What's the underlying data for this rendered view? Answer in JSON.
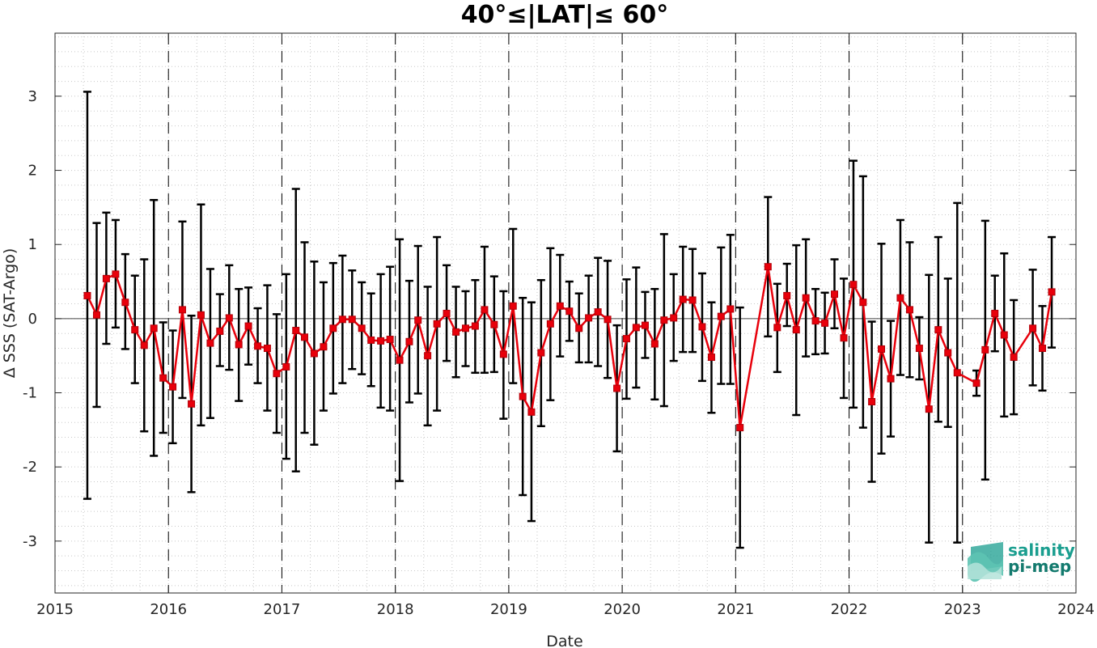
{
  "chart_data": {
    "type": "line",
    "title": "40°≤|LAT|≤ 60°",
    "xlabel": "Date",
    "ylabel": "Δ SSS (SAT-Argo)",
    "xlim": [
      "2015-01-01",
      "2024-01-01"
    ],
    "ylim": [
      -3.7,
      3.85
    ],
    "x_ticks": [
      "2015",
      "2016",
      "2017",
      "2018",
      "2019",
      "2020",
      "2021",
      "2022",
      "2023",
      "2024"
    ],
    "y_ticks": [
      -3,
      -2,
      -1,
      0,
      1,
      2,
      3
    ],
    "grid": "minor-dotted",
    "year_boundaries": [
      "2016",
      "2017",
      "2018",
      "2019",
      "2020",
      "2021",
      "2022",
      "2023"
    ],
    "series": [
      {
        "color": "#e8000b",
        "marker": "square",
        "errorbar_color": "#000000",
        "points": [
          {
            "x": "2015-04-15",
            "y": 0.31,
            "lo": -2.43,
            "hi": 3.06
          },
          {
            "x": "2015-05-15",
            "y": 0.05,
            "lo": -1.19,
            "hi": 1.29
          },
          {
            "x": "2015-06-15",
            "y": 0.54,
            "lo": -0.34,
            "hi": 1.43
          },
          {
            "x": "2015-07-15",
            "y": 0.6,
            "lo": -0.12,
            "hi": 1.33
          },
          {
            "x": "2015-08-15",
            "y": 0.22,
            "lo": -0.41,
            "hi": 0.87
          },
          {
            "x": "2015-09-15",
            "y": -0.15,
            "lo": -0.87,
            "hi": 0.58
          },
          {
            "x": "2015-10-15",
            "y": -0.36,
            "lo": -1.52,
            "hi": 0.8
          },
          {
            "x": "2015-11-15",
            "y": -0.13,
            "lo": -1.85,
            "hi": 1.6
          },
          {
            "x": "2015-12-15",
            "y": -0.8,
            "lo": -1.54,
            "hi": -0.05
          },
          {
            "x": "2016-01-15",
            "y": -0.92,
            "lo": -1.68,
            "hi": -0.16
          },
          {
            "x": "2016-02-15",
            "y": 0.12,
            "lo": -1.07,
            "hi": 1.31
          },
          {
            "x": "2016-03-15",
            "y": -1.15,
            "lo": -2.34,
            "hi": 0.04
          },
          {
            "x": "2016-04-15",
            "y": 0.05,
            "lo": -1.44,
            "hi": 1.54
          },
          {
            "x": "2016-05-15",
            "y": -0.33,
            "lo": -1.34,
            "hi": 0.67
          },
          {
            "x": "2016-06-15",
            "y": -0.17,
            "lo": -0.64,
            "hi": 0.33
          },
          {
            "x": "2016-07-15",
            "y": 0.01,
            "lo": -0.69,
            "hi": 0.72
          },
          {
            "x": "2016-08-15",
            "y": -0.35,
            "lo": -1.11,
            "hi": 0.4
          },
          {
            "x": "2016-09-15",
            "y": -0.1,
            "lo": -0.62,
            "hi": 0.42
          },
          {
            "x": "2016-10-15",
            "y": -0.37,
            "lo": -0.87,
            "hi": 0.14
          },
          {
            "x": "2016-11-15",
            "y": -0.4,
            "lo": -1.24,
            "hi": 0.45
          },
          {
            "x": "2016-12-15",
            "y": -0.74,
            "lo": -1.54,
            "hi": 0.06
          },
          {
            "x": "2017-01-15",
            "y": -0.65,
            "lo": -1.89,
            "hi": 0.6
          },
          {
            "x": "2017-02-15",
            "y": -0.16,
            "lo": -2.06,
            "hi": 1.75
          },
          {
            "x": "2017-03-15",
            "y": -0.25,
            "lo": -1.54,
            "hi": 1.03
          },
          {
            "x": "2017-04-15",
            "y": -0.47,
            "lo": -1.7,
            "hi": 0.77
          },
          {
            "x": "2017-05-15",
            "y": -0.38,
            "lo": -1.24,
            "hi": 0.49
          },
          {
            "x": "2017-06-15",
            "y": -0.13,
            "lo": -1.01,
            "hi": 0.75
          },
          {
            "x": "2017-07-15",
            "y": -0.01,
            "lo": -0.87,
            "hi": 0.85
          },
          {
            "x": "2017-08-15",
            "y": -0.01,
            "lo": -0.68,
            "hi": 0.65
          },
          {
            "x": "2017-09-15",
            "y": -0.13,
            "lo": -0.75,
            "hi": 0.49
          },
          {
            "x": "2017-10-15",
            "y": -0.29,
            "lo": -0.91,
            "hi": 0.34
          },
          {
            "x": "2017-11-15",
            "y": -0.3,
            "lo": -1.2,
            "hi": 0.6
          },
          {
            "x": "2017-12-15",
            "y": -0.28,
            "lo": -1.24,
            "hi": 0.7
          },
          {
            "x": "2018-01-15",
            "y": -0.56,
            "lo": -2.19,
            "hi": 1.07
          },
          {
            "x": "2018-02-15",
            "y": -0.31,
            "lo": -1.13,
            "hi": 0.51
          },
          {
            "x": "2018-03-15",
            "y": -0.02,
            "lo": -1.01,
            "hi": 0.98
          },
          {
            "x": "2018-04-15",
            "y": -0.5,
            "lo": -1.44,
            "hi": 0.43
          },
          {
            "x": "2018-05-15",
            "y": -0.07,
            "lo": -1.24,
            "hi": 1.1
          },
          {
            "x": "2018-06-15",
            "y": 0.07,
            "lo": -0.57,
            "hi": 0.72
          },
          {
            "x": "2018-07-15",
            "y": -0.18,
            "lo": -0.79,
            "hi": 0.43
          },
          {
            "x": "2018-08-15",
            "y": -0.13,
            "lo": -0.64,
            "hi": 0.37
          },
          {
            "x": "2018-09-15",
            "y": -0.1,
            "lo": -0.73,
            "hi": 0.52
          },
          {
            "x": "2018-10-15",
            "y": 0.12,
            "lo": -0.73,
            "hi": 0.97
          },
          {
            "x": "2018-11-15",
            "y": -0.08,
            "lo": -0.72,
            "hi": 0.57
          },
          {
            "x": "2018-12-15",
            "y": -0.48,
            "lo": -1.35,
            "hi": 0.37
          },
          {
            "x": "2019-01-15",
            "y": 0.17,
            "lo": -0.87,
            "hi": 1.21
          },
          {
            "x": "2019-02-15",
            "y": -1.05,
            "lo": -2.38,
            "hi": 0.28
          },
          {
            "x": "2019-03-15",
            "y": -1.26,
            "lo": -2.73,
            "hi": 0.22
          },
          {
            "x": "2019-04-15",
            "y": -0.46,
            "lo": -1.45,
            "hi": 0.52
          },
          {
            "x": "2019-05-15",
            "y": -0.07,
            "lo": -1.1,
            "hi": 0.95
          },
          {
            "x": "2019-06-15",
            "y": 0.17,
            "lo": -0.51,
            "hi": 0.86
          },
          {
            "x": "2019-07-15",
            "y": 0.1,
            "lo": -0.3,
            "hi": 0.5
          },
          {
            "x": "2019-08-15",
            "y": -0.13,
            "lo": -0.59,
            "hi": 0.34
          },
          {
            "x": "2019-09-15",
            "y": 0.01,
            "lo": -0.59,
            "hi": 0.58
          },
          {
            "x": "2019-10-15",
            "y": 0.09,
            "lo": -0.64,
            "hi": 0.82
          },
          {
            "x": "2019-11-15",
            "y": -0.01,
            "lo": -0.8,
            "hi": 0.78
          },
          {
            "x": "2019-12-15",
            "y": -0.94,
            "lo": -1.79,
            "hi": -0.09
          },
          {
            "x": "2020-01-15",
            "y": -0.27,
            "lo": -1.08,
            "hi": 0.53
          },
          {
            "x": "2020-02-15",
            "y": -0.12,
            "lo": -0.93,
            "hi": 0.69
          },
          {
            "x": "2020-03-15",
            "y": -0.09,
            "lo": -0.53,
            "hi": 0.36
          },
          {
            "x": "2020-04-15",
            "y": -0.34,
            "lo": -1.09,
            "hi": 0.4
          },
          {
            "x": "2020-05-15",
            "y": -0.02,
            "lo": -1.18,
            "hi": 1.14
          },
          {
            "x": "2020-06-15",
            "y": 0.01,
            "lo": -0.57,
            "hi": 0.6
          },
          {
            "x": "2020-07-15",
            "y": 0.26,
            "lo": -0.45,
            "hi": 0.97
          },
          {
            "x": "2020-08-15",
            "y": 0.25,
            "lo": -0.45,
            "hi": 0.94
          },
          {
            "x": "2020-09-15",
            "y": -0.11,
            "lo": -0.84,
            "hi": 0.61
          },
          {
            "x": "2020-10-15",
            "y": -0.52,
            "lo": -1.27,
            "hi": 0.22
          },
          {
            "x": "2020-11-15",
            "y": 0.03,
            "lo": -0.88,
            "hi": 0.96
          },
          {
            "x": "2020-12-15",
            "y": 0.13,
            "lo": -0.88,
            "hi": 1.13
          },
          {
            "x": "2021-01-15",
            "y": -1.47,
            "lo": -3.09,
            "hi": 0.15
          },
          {
            "x": "2021-04-15",
            "y": 0.7,
            "lo": -0.24,
            "hi": 1.64
          },
          {
            "x": "2021-05-15",
            "y": -0.12,
            "lo": -0.72,
            "hi": 0.47
          },
          {
            "x": "2021-06-15",
            "y": 0.31,
            "lo": -0.1,
            "hi": 0.74
          },
          {
            "x": "2021-07-15",
            "y": -0.15,
            "lo": -1.3,
            "hi": 0.99
          },
          {
            "x": "2021-08-15",
            "y": 0.28,
            "lo": -0.51,
            "hi": 1.07
          },
          {
            "x": "2021-09-15",
            "y": -0.03,
            "lo": -0.48,
            "hi": 0.4
          },
          {
            "x": "2021-10-15",
            "y": -0.06,
            "lo": -0.47,
            "hi": 0.35
          },
          {
            "x": "2021-11-15",
            "y": 0.33,
            "lo": -0.13,
            "hi": 0.8
          },
          {
            "x": "2021-12-15",
            "y": -0.26,
            "lo": -1.07,
            "hi": 0.54
          },
          {
            "x": "2022-01-15",
            "y": 0.46,
            "lo": -1.2,
            "hi": 2.13
          },
          {
            "x": "2022-02-15",
            "y": 0.22,
            "lo": -1.47,
            "hi": 1.92
          },
          {
            "x": "2022-03-15",
            "y": -1.12,
            "lo": -2.2,
            "hi": -0.04
          },
          {
            "x": "2022-04-15",
            "y": -0.41,
            "lo": -1.82,
            "hi": 1.01
          },
          {
            "x": "2022-05-15",
            "y": -0.81,
            "lo": -1.59,
            "hi": -0.03
          },
          {
            "x": "2022-06-15",
            "y": 0.28,
            "lo": -0.76,
            "hi": 1.33
          },
          {
            "x": "2022-07-15",
            "y": 0.12,
            "lo": -0.79,
            "hi": 1.03
          },
          {
            "x": "2022-08-15",
            "y": -0.4,
            "lo": -0.82,
            "hi": 0.02
          },
          {
            "x": "2022-09-15",
            "y": -1.22,
            "lo": -3.02,
            "hi": 0.59
          },
          {
            "x": "2022-10-15",
            "y": -0.15,
            "lo": -1.39,
            "hi": 1.1
          },
          {
            "x": "2022-11-15",
            "y": -0.46,
            "lo": -1.46,
            "hi": 0.54
          },
          {
            "x": "2022-12-15",
            "y": -0.73,
            "lo": -3.02,
            "hi": 1.56
          },
          {
            "x": "2023-02-15",
            "y": -0.87,
            "lo": -1.04,
            "hi": -0.7
          },
          {
            "x": "2023-03-15",
            "y": -0.42,
            "lo": -2.17,
            "hi": 1.32
          },
          {
            "x": "2023-04-15",
            "y": 0.07,
            "lo": -0.44,
            "hi": 0.58
          },
          {
            "x": "2023-05-15",
            "y": -0.22,
            "lo": -1.32,
            "hi": 0.88
          },
          {
            "x": "2023-06-15",
            "y": -0.52,
            "lo": -1.29,
            "hi": 0.25
          },
          {
            "x": "2023-08-15",
            "y": -0.13,
            "lo": -0.9,
            "hi": 0.66
          },
          {
            "x": "2023-09-15",
            "y": -0.4,
            "lo": -0.97,
            "hi": 0.17
          },
          {
            "x": "2023-10-15",
            "y": 0.36,
            "lo": -0.39,
            "hi": 1.1
          }
        ]
      }
    ]
  },
  "logo": {
    "line1": "salinity",
    "line2": "pi-mep",
    "color": "#1a9e8f"
  }
}
